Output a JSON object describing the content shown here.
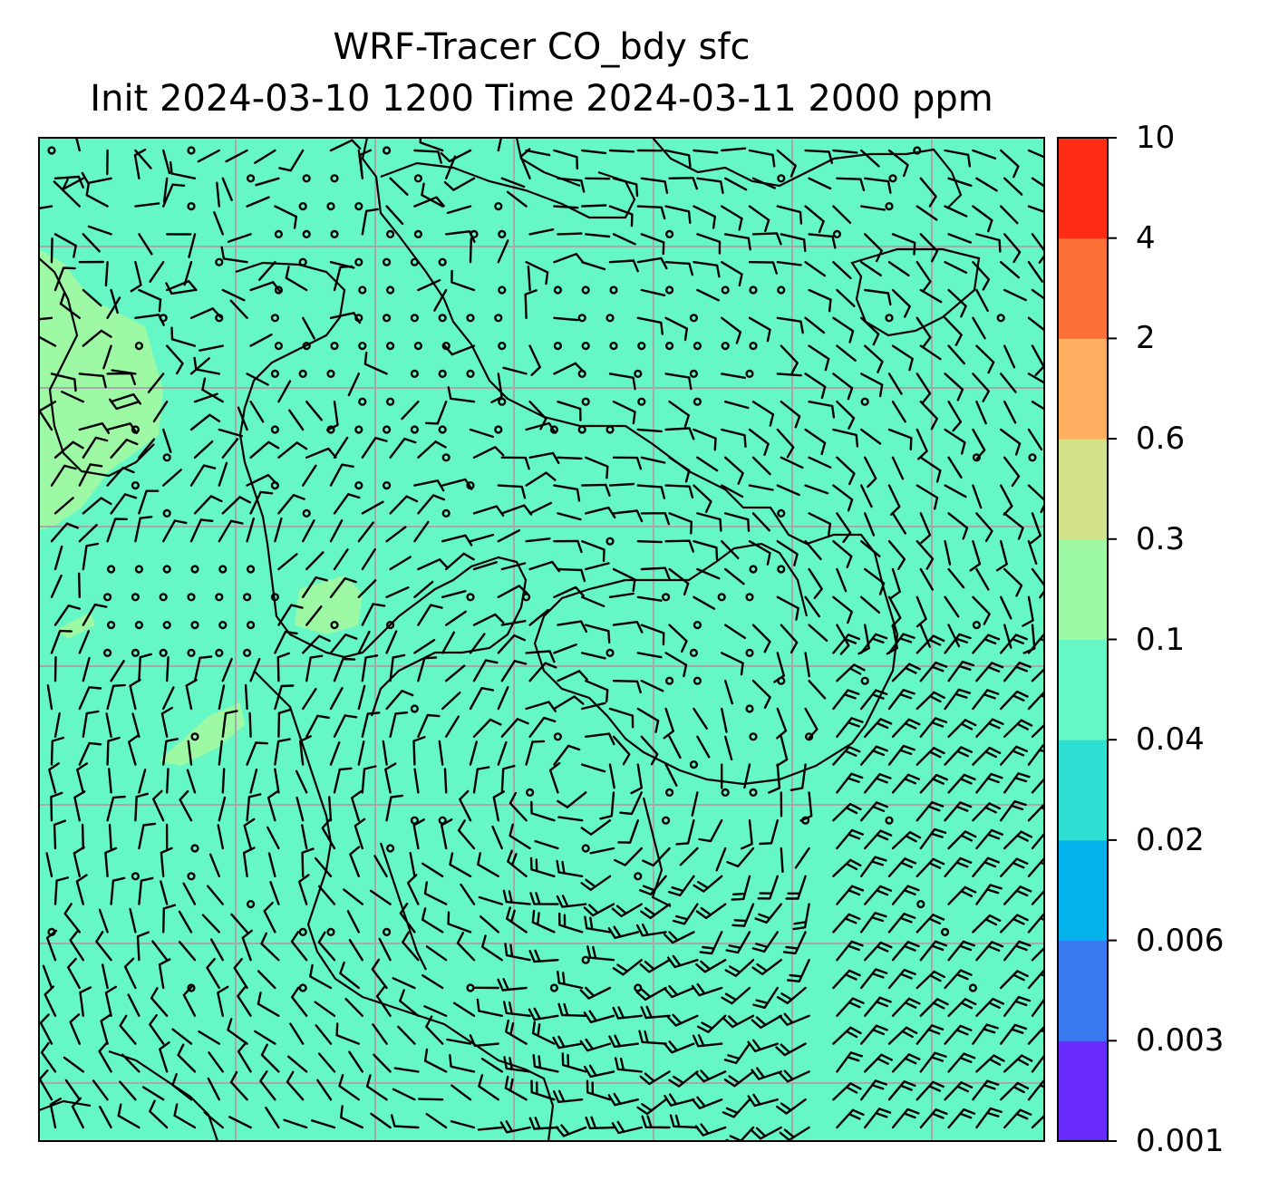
{
  "title": {
    "line1": "WRF-Tracer CO_bdy sfc",
    "line2": "Init 2024-03-10 1200 Time 2024-03-11 2000 ppm"
  },
  "colorbar": {
    "levels": [
      {
        "color": "#6a2cfc"
      },
      {
        "color": "#3879ef"
      },
      {
        "color": "#04b2eb"
      },
      {
        "color": "#2ee0d4"
      },
      {
        "color": "#66f7c6"
      },
      {
        "color": "#9df9a4"
      },
      {
        "color": "#d2e289"
      },
      {
        "color": "#ffad5e"
      },
      {
        "color": "#ff7038"
      },
      {
        "color": "#ff2c16"
      }
    ],
    "ticks": [
      "0.001",
      "0.003",
      "0.006",
      "0.02",
      "0.04",
      "0.1",
      "0.3",
      "0.6",
      "2",
      "4",
      "10"
    ]
  },
  "map": {
    "background_color": "#66f7c6",
    "highlight_color": "#9df9a4",
    "gridline_color": "#a8a8a8",
    "gridlines": true,
    "field": "CO_bdy surface tracer concentration with wind barbs"
  }
}
